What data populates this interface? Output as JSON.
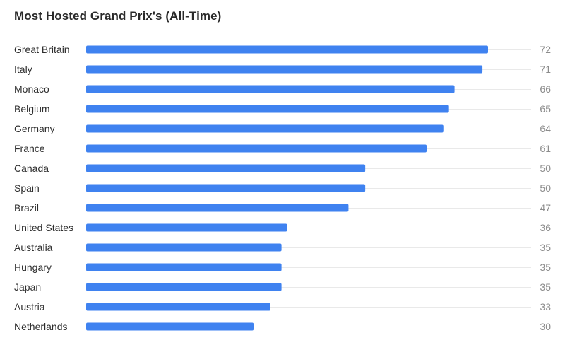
{
  "colors": {
    "bar": "#3f82f0",
    "track": "#e9e9e9",
    "label": "#2d2d2d",
    "value": "#8c8c8c"
  },
  "chart_data": {
    "type": "bar",
    "orientation": "horizontal",
    "title": "Most Hosted Grand Prix's (All-Time)",
    "xlabel": "",
    "ylabel": "",
    "xlim": [
      0,
      72
    ],
    "grid": false,
    "legend": "none",
    "categories": [
      "Great Britain",
      "Italy",
      "Monaco",
      "Belgium",
      "Germany",
      "France",
      "Canada",
      "Spain",
      "Brazil",
      "United States",
      "Australia",
      "Hungary",
      "Japan",
      "Austria",
      "Netherlands"
    ],
    "values": [
      72,
      71,
      66,
      65,
      64,
      61,
      50,
      50,
      47,
      36,
      35,
      35,
      35,
      33,
      30
    ]
  }
}
